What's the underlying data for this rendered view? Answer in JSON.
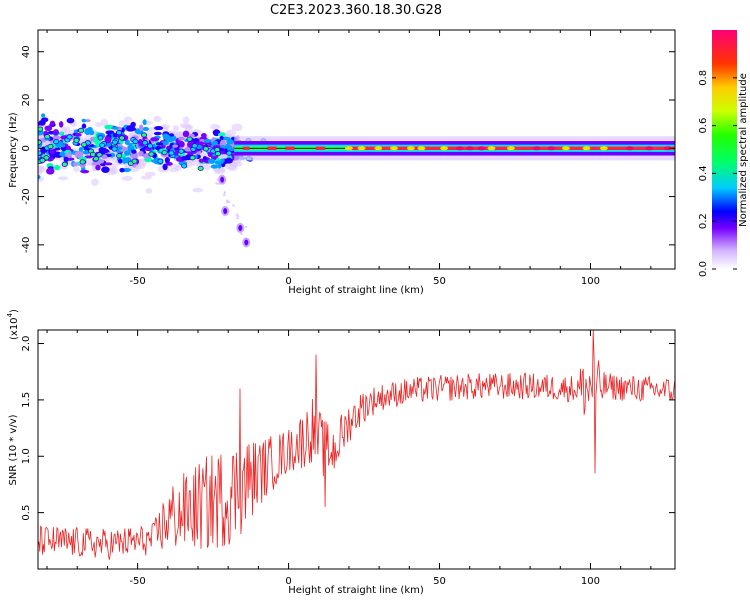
{
  "figure_title": "C2E3.2023.360.18.30.G28",
  "chart_data": [
    {
      "type": "heatmap",
      "title": "C2E3.2023.360.18.30.G28",
      "xlabel": "Height of straight line (km)",
      "ylabel": "Frequency (Hz)",
      "xlim": [
        -83,
        128
      ],
      "ylim": [
        -50,
        49
      ],
      "xticks": [
        -50,
        0,
        50,
        100
      ],
      "xtick_labels": [
        "-50",
        "0",
        "50",
        "100"
      ],
      "yticks": [
        -40,
        -20,
        0,
        20,
        40
      ],
      "ytick_labels": [
        "-40",
        "-20",
        "0",
        "20",
        "40"
      ],
      "colorbar": {
        "label": "Normalized spectral amplitude",
        "range": [
          0.0,
          1.0
        ],
        "ticks": [
          0.0,
          0.2,
          0.4,
          0.6,
          0.8
        ],
        "tick_labels": [
          "0.0",
          "0.2",
          "0.4",
          "0.6",
          "0.8"
        ]
      },
      "signal_description": {
        "centerline_hz": 0,
        "scattered_region_km": [
          -83,
          -15
        ],
        "scattered_spread_hz": [
          -12,
          10
        ],
        "tail_points": [
          {
            "x": -22,
            "y": -13
          },
          {
            "x": -21,
            "y": -26
          },
          {
            "x": -16,
            "y": -33
          },
          {
            "x": -14,
            "y": -39
          }
        ],
        "strong_segments_km": [
          [
            -15,
            -13
          ],
          [
            -7,
            -4
          ],
          [
            -1,
            2
          ],
          [
            9,
            12
          ],
          [
            20,
            128
          ]
        ]
      }
    },
    {
      "type": "line",
      "xlabel": "Height of straight line (km)",
      "ylabel": "SNR (10 * v/v)",
      "y_multiplier_label": "(x10",
      "y_multiplier_exp": "4",
      "y_multiplier_close": ")",
      "xlim": [
        -83,
        128
      ],
      "ylim": [
        0,
        2.12
      ],
      "xticks": [
        -50,
        0,
        50,
        100
      ],
      "xtick_labels": [
        "-50",
        "0",
        "50",
        "100"
      ],
      "yticks": [
        0.5,
        1.0,
        1.5,
        2.0
      ],
      "ytick_labels": [
        "0.5",
        "1.0",
        "1.5",
        "2.0"
      ],
      "series": [
        {
          "name": "SNR",
          "color": "#ee2222",
          "envelope_x": [
            -83,
            -60,
            -45,
            -40,
            -30,
            -20,
            -15,
            -10,
            -5,
            0,
            5,
            8,
            12,
            15,
            20,
            25,
            30,
            40,
            60,
            80,
            95,
            100,
            102,
            105,
            115,
            128
          ],
          "envelope_y": [
            0.25,
            0.22,
            0.26,
            0.45,
            0.55,
            0.65,
            0.75,
            0.85,
            0.95,
            1.05,
            1.15,
            1.25,
            1.05,
            1.05,
            1.3,
            1.45,
            1.52,
            1.58,
            1.62,
            1.62,
            1.6,
            1.6,
            1.6,
            1.62,
            1.6,
            1.58
          ],
          "noise_x": [
            -83,
            -45,
            -40,
            -25,
            -15,
            -10,
            0,
            8,
            14,
            20,
            30,
            60,
            95,
            100,
            105,
            128
          ],
          "noise_amp": [
            0.14,
            0.14,
            0.3,
            0.45,
            0.45,
            0.3,
            0.2,
            0.3,
            0.25,
            0.18,
            0.12,
            0.12,
            0.12,
            0.4,
            0.12,
            0.12
          ],
          "spikes": [
            {
              "x": 101,
              "y": 2.12
            },
            {
              "x": 101.5,
              "y": 0.85
            },
            {
              "x": 9,
              "y": 1.9
            },
            {
              "x": -16,
              "y": 1.6
            },
            {
              "x": 12,
              "y": 0.55
            }
          ]
        }
      ]
    }
  ]
}
